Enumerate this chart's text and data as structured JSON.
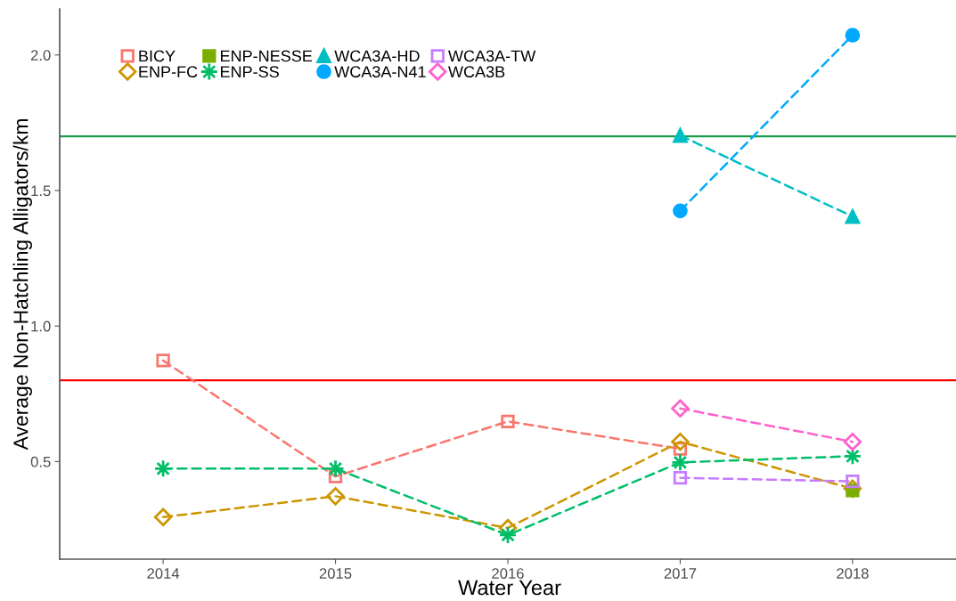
{
  "chart_data": {
    "type": "line",
    "xlabel": "Water Year",
    "ylabel": "Average Non-Hatchling Alligators/km",
    "categories": [
      "2014",
      "2015",
      "2016",
      "2017",
      "2018"
    ],
    "series": [
      {
        "name": "BICY",
        "color": "#F8766D",
        "marker": "square-open",
        "values": [
          0.873,
          0.445,
          0.648,
          0.547,
          null
        ]
      },
      {
        "name": "ENP-FC",
        "color": "#CD9600",
        "marker": "diamond-open",
        "values": [
          0.295,
          0.372,
          0.255,
          0.573,
          0.4
        ]
      },
      {
        "name": "ENP-NESSE",
        "color": "#7CAE00",
        "marker": "square",
        "values": [
          null,
          null,
          null,
          null,
          0.393
        ]
      },
      {
        "name": "ENP-SS",
        "color": "#00BE67",
        "marker": "cross",
        "values": [
          0.474,
          0.474,
          0.229,
          0.497,
          0.52
        ]
      },
      {
        "name": "WCA3A-HD",
        "color": "#00BFC4",
        "marker": "triangle",
        "values": [
          null,
          null,
          null,
          1.703,
          1.404
        ]
      },
      {
        "name": "WCA3A-N41",
        "color": "#00A9FF",
        "marker": "circle",
        "values": [
          null,
          null,
          null,
          1.425,
          2.073
        ]
      },
      {
        "name": "WCA3A-TW",
        "color": "#C77CFF",
        "marker": "square-open",
        "values": [
          null,
          null,
          null,
          0.44,
          0.427
        ]
      },
      {
        "name": "WCA3B",
        "color": "#FF61CC",
        "marker": "diamond-open",
        "values": [
          null,
          null,
          null,
          0.696,
          0.573
        ]
      }
    ],
    "ylim": [
      0.14,
      2.17
    ],
    "yticks": [
      0.5,
      {
        "value": 1,
        "label": "1.0"
      },
      1.5,
      {
        "value": 2,
        "label": "2.0"
      }
    ],
    "ref_lines": [
      {
        "axis": "y",
        "value": 0.8,
        "color": "#FF0000"
      },
      {
        "axis": "y",
        "value": 1.7,
        "color": "#1E9E4A"
      }
    ],
    "line_style": "dashed",
    "grid": false,
    "legend": "top left"
  }
}
